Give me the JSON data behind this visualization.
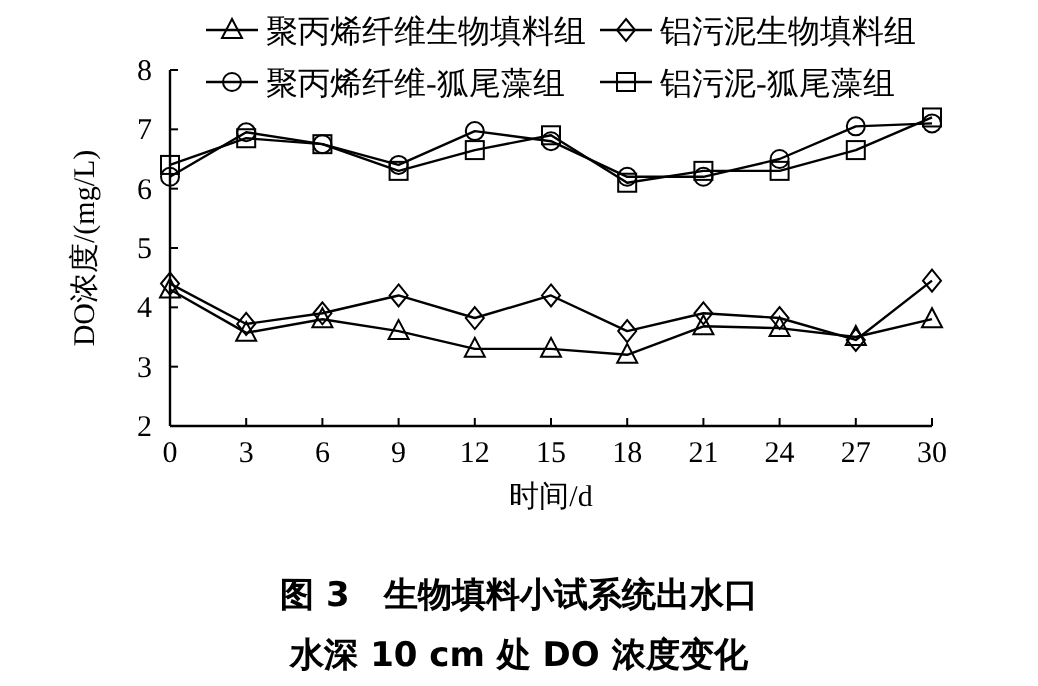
{
  "chart_data": {
    "type": "line",
    "title": "**图 3**　生物填料小试系统出水口",
    "subtitle": "水深 10 cm 处 DO 浓度变化",
    "xlabel": "时间/d",
    "ylabel": "DO浓度/(mg/L)",
    "x": [
      0,
      3,
      6,
      9,
      12,
      15,
      18,
      21,
      24,
      27,
      30
    ],
    "xlim": [
      0,
      30
    ],
    "xticks": [
      0,
      3,
      6,
      9,
      12,
      15,
      18,
      21,
      24,
      27,
      30
    ],
    "ylim": [
      2,
      8
    ],
    "yticks": [
      2,
      3,
      4,
      5,
      6,
      7,
      8
    ],
    "legend": "top",
    "grid": false,
    "line_style": "solid",
    "series": [
      {
        "name": "聚丙烯纤维生物填料组",
        "color": "#000000",
        "marker": "triangle",
        "values": [
          4.3,
          3.57,
          3.8,
          3.6,
          3.3,
          3.3,
          3.2,
          3.68,
          3.65,
          3.5,
          3.8
        ]
      },
      {
        "name": "铝污泥生物填料组",
        "color": "#000000",
        "marker": "diamond",
        "values": [
          4.4,
          3.72,
          3.9,
          4.2,
          3.82,
          4.2,
          3.6,
          3.9,
          3.82,
          3.45,
          4.45
        ]
      },
      {
        "name": "聚丙烯纤维-狐尾藻组",
        "color": "#000000",
        "marker": "circle",
        "values": [
          6.2,
          6.95,
          6.75,
          6.4,
          6.97,
          6.8,
          6.2,
          6.2,
          6.5,
          7.05,
          7.1
        ]
      },
      {
        "name": "铝污泥-狐尾藻组",
        "color": "#000000",
        "marker": "square",
        "values": [
          6.4,
          6.85,
          6.75,
          6.3,
          6.65,
          6.9,
          6.1,
          6.3,
          6.3,
          6.65,
          7.2
        ]
      }
    ]
  }
}
